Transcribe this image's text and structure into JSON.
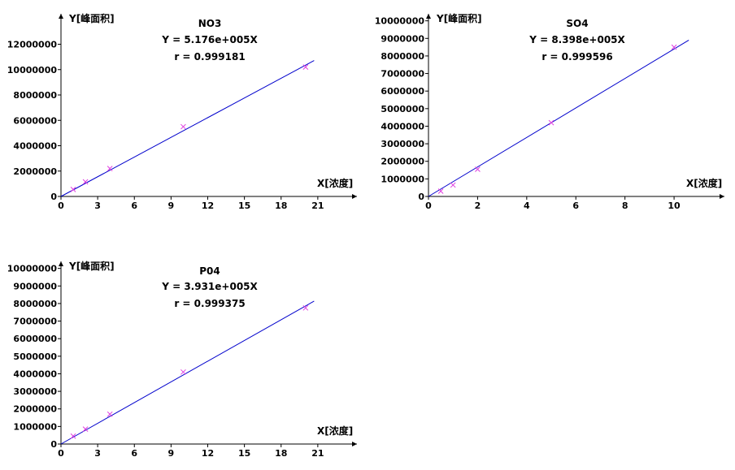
{
  "chart_data": [
    {
      "type": "scatter",
      "title": "NO3",
      "equation": "Y = 5.176e+005X",
      "r_text": "r = 0.999181",
      "xlabel": "X[浓度]",
      "ylabel": "Y[峰面积]",
      "xticks": [
        0,
        3,
        6,
        9,
        12,
        15,
        18,
        21
      ],
      "yticks": [
        0,
        2000000,
        4000000,
        6000000,
        8000000,
        10000000,
        12000000
      ],
      "xlim": [
        0,
        24.2
      ],
      "ylim": [
        0,
        14400000
      ],
      "slope": 517600,
      "fit_x": [
        0,
        20.7
      ],
      "points": {
        "x": [
          1,
          2,
          4,
          10,
          20
        ],
        "y": [
          550000,
          1150000,
          2200000,
          5500000,
          10200000
        ]
      },
      "colors": {
        "points": "#e040e0",
        "line": "#0000cc",
        "axes": "#000000"
      }
    },
    {
      "type": "scatter",
      "title": "SO4",
      "equation": "Y = 8.398e+005X",
      "r_text": "r = 0.999596",
      "xlabel": "X[浓度]",
      "ylabel": "Y[峰面积]",
      "xticks": [
        0,
        2,
        4,
        6,
        8,
        10
      ],
      "yticks": [
        0,
        1000000,
        2000000,
        3000000,
        4000000,
        5000000,
        6000000,
        7000000,
        8000000,
        9000000,
        10000000
      ],
      "xlim": [
        0,
        12.05
      ],
      "ylim": [
        0,
        10400000
      ],
      "slope": 839800,
      "fit_x": [
        0,
        10.6
      ],
      "points": {
        "x": [
          0.5,
          1,
          2,
          5,
          10
        ],
        "y": [
          300000,
          650000,
          1550000,
          4200000,
          8500000
        ]
      },
      "colors": {
        "points": "#e040e0",
        "line": "#0000cc",
        "axes": "#000000"
      }
    },
    {
      "type": "scatter",
      "title": "P04",
      "equation": "Y = 3.931e+005X",
      "r_text": "r = 0.999375",
      "xlabel": "X[浓度]",
      "ylabel": "Y[峰面积]",
      "xticks": [
        0,
        3,
        6,
        9,
        12,
        15,
        18,
        21
      ],
      "yticks": [
        0,
        1000000,
        2000000,
        3000000,
        4000000,
        5000000,
        6000000,
        7000000,
        8000000,
        9000000,
        10000000
      ],
      "xlim": [
        0,
        24.2
      ],
      "ylim": [
        0,
        10400000
      ],
      "slope": 393100,
      "fit_x": [
        0,
        20.7
      ],
      "points": {
        "x": [
          1,
          2,
          4,
          10,
          20
        ],
        "y": [
          450000,
          850000,
          1700000,
          4100000,
          7750000
        ]
      },
      "colors": {
        "points": "#e040e0",
        "line": "#0000cc",
        "axes": "#000000"
      }
    }
  ]
}
